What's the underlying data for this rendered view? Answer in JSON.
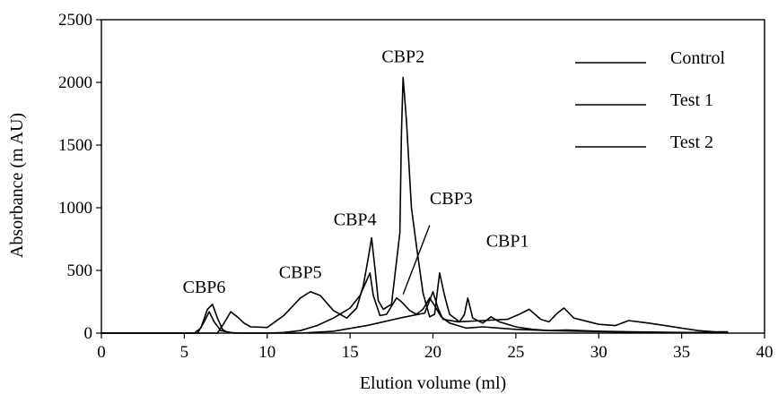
{
  "chart_data": {
    "type": "line",
    "title": "",
    "xlabel": "Elution volume (ml)",
    "ylabel": "Absorbance (m AU)",
    "xlim": [
      0,
      40
    ],
    "ylim": [
      0,
      2500
    ],
    "xticks": [
      0,
      5,
      10,
      15,
      20,
      25,
      30,
      35,
      40
    ],
    "yticks": [
      0,
      500,
      1000,
      1500,
      2000,
      2500
    ],
    "grid": false,
    "legend_position": "top-right",
    "line_color": "#000000",
    "series": [
      {
        "name": "Control",
        "points": [
          [
            0,
            0
          ],
          [
            5.6,
            0
          ],
          [
            6.0,
            40
          ],
          [
            6.4,
            190
          ],
          [
            6.7,
            230
          ],
          [
            7.0,
            120
          ],
          [
            7.3,
            30
          ],
          [
            7.6,
            5
          ],
          [
            8.5,
            0
          ],
          [
            12,
            0
          ],
          [
            14,
            15
          ],
          [
            16,
            60
          ],
          [
            18,
            120
          ],
          [
            19.5,
            160
          ],
          [
            20,
            330
          ],
          [
            20.3,
            200
          ],
          [
            20.6,
            110
          ],
          [
            21.5,
            90
          ],
          [
            23,
            100
          ],
          [
            24.5,
            110
          ],
          [
            25.2,
            150
          ],
          [
            25.8,
            190
          ],
          [
            26.5,
            110
          ],
          [
            27,
            90
          ],
          [
            27.5,
            160
          ],
          [
            27.9,
            200
          ],
          [
            28.5,
            120
          ],
          [
            30,
            70
          ],
          [
            31,
            60
          ],
          [
            31.8,
            100
          ],
          [
            33,
            80
          ],
          [
            34,
            60
          ],
          [
            35,
            40
          ],
          [
            36,
            20
          ],
          [
            37,
            10
          ],
          [
            37.8,
            10
          ]
        ]
      },
      {
        "name": "Test 1",
        "points": [
          [
            0,
            0
          ],
          [
            7.0,
            0
          ],
          [
            7.4,
            80
          ],
          [
            7.8,
            170
          ],
          [
            8.2,
            130
          ],
          [
            8.6,
            80
          ],
          [
            9.0,
            50
          ],
          [
            10,
            45
          ],
          [
            11,
            140
          ],
          [
            12,
            280
          ],
          [
            12.6,
            330
          ],
          [
            13.2,
            300
          ],
          [
            14,
            180
          ],
          [
            14.8,
            120
          ],
          [
            15.4,
            200
          ],
          [
            15.8,
            380
          ],
          [
            16.1,
            600
          ],
          [
            16.3,
            760
          ],
          [
            16.5,
            520
          ],
          [
            16.7,
            260
          ],
          [
            17,
            190
          ],
          [
            17.5,
            230
          ],
          [
            18.0,
            800
          ],
          [
            18.1,
            1600
          ],
          [
            18.2,
            2040
          ],
          [
            18.4,
            1700
          ],
          [
            18.7,
            1000
          ],
          [
            19,
            700
          ],
          [
            19.4,
            320
          ],
          [
            19.8,
            130
          ],
          [
            20.1,
            150
          ],
          [
            20.4,
            480
          ],
          [
            20.7,
            300
          ],
          [
            21,
            150
          ],
          [
            21.6,
            90
          ],
          [
            21.9,
            150
          ],
          [
            22.1,
            280
          ],
          [
            22.4,
            120
          ],
          [
            23,
            80
          ],
          [
            23.5,
            130
          ],
          [
            24,
            90
          ],
          [
            25,
            50
          ],
          [
            26,
            30
          ],
          [
            27,
            20
          ],
          [
            28,
            25
          ],
          [
            30,
            15
          ],
          [
            32,
            10
          ],
          [
            35,
            5
          ],
          [
            37.8,
            5
          ]
        ]
      },
      {
        "name": "Test 2",
        "points": [
          [
            0,
            0
          ],
          [
            5.8,
            0
          ],
          [
            6.2,
            90
          ],
          [
            6.5,
            170
          ],
          [
            6.8,
            90
          ],
          [
            7.2,
            20
          ],
          [
            8,
            0
          ],
          [
            10,
            0
          ],
          [
            11,
            5
          ],
          [
            12,
            20
          ],
          [
            13,
            60
          ],
          [
            14,
            120
          ],
          [
            15,
            200
          ],
          [
            15.6,
            300
          ],
          [
            16.0,
            420
          ],
          [
            16.2,
            480
          ],
          [
            16.4,
            300
          ],
          [
            16.8,
            140
          ],
          [
            17.2,
            150
          ],
          [
            17.8,
            280
          ],
          [
            18.1,
            250
          ],
          [
            18.6,
            180
          ],
          [
            19,
            150
          ],
          [
            19.4,
            190
          ],
          [
            19.8,
            280
          ],
          [
            20.0,
            240
          ],
          [
            20.5,
            130
          ],
          [
            21,
            80
          ],
          [
            22,
            40
          ],
          [
            23,
            50
          ],
          [
            24,
            40
          ],
          [
            25,
            30
          ],
          [
            27,
            20
          ],
          [
            29,
            15
          ],
          [
            31,
            10
          ],
          [
            34,
            5
          ],
          [
            37.8,
            5
          ]
        ]
      }
    ],
    "annotations": [
      {
        "text": "CBP1",
        "x": 24.5,
        "y": 690
      },
      {
        "text": "CBP2",
        "x": 18.2,
        "y": 2160
      },
      {
        "text": "CBP3",
        "x": 21.1,
        "y": 1030
      },
      {
        "text": "CBP4",
        "x": 15.3,
        "y": 860
      },
      {
        "text": "CBP5",
        "x": 12.0,
        "y": 440
      },
      {
        "text": "CBP6",
        "x": 6.2,
        "y": 320
      }
    ],
    "pointer": {
      "from": [
        19.8,
        860
      ],
      "to": [
        18.2,
        310
      ]
    }
  }
}
